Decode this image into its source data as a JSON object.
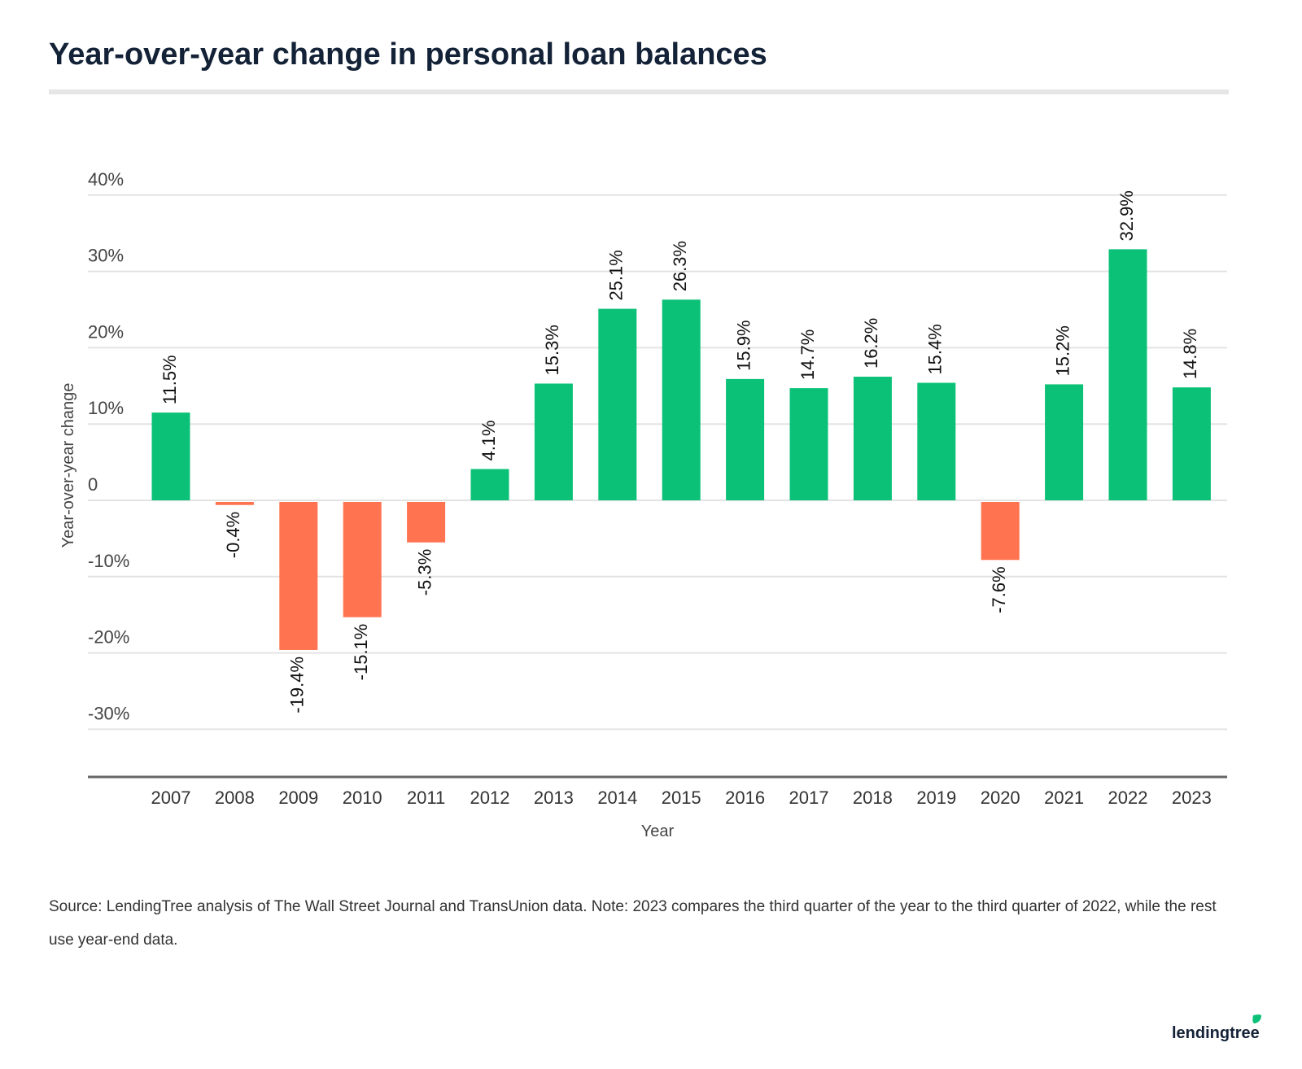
{
  "title": "Year-over-year change in personal loan balances",
  "source": "Source: LendingTree analysis of The Wall Street Journal and TransUnion data. Note: 2023 compares the third quarter of the year to the third quarter of 2022, while the rest use year-end data.",
  "logo": "lendingtree",
  "chart_data": {
    "type": "bar",
    "title": "Year-over-year change in personal loan balances",
    "xlabel": "Year",
    "ylabel": "Year-over-year change",
    "categories": [
      "2007",
      "2008",
      "2009",
      "2010",
      "2011",
      "2012",
      "2013",
      "2014",
      "2015",
      "2016",
      "2017",
      "2018",
      "2019",
      "2020",
      "2021",
      "2022",
      "2023"
    ],
    "values": [
      11.5,
      -0.4,
      -19.4,
      -15.1,
      -5.3,
      4.1,
      15.3,
      25.1,
      26.3,
      15.9,
      14.7,
      16.2,
      15.4,
      -7.6,
      15.2,
      32.9,
      14.8
    ],
    "data_labels": [
      "11.5%",
      "-0.4%",
      "-19.4%",
      "-15.1%",
      "-5.3%",
      "4.1%",
      "15.3%",
      "25.1%",
      "26.3%",
      "15.9%",
      "14.7%",
      "16.2%",
      "15.4%",
      "-7.6%",
      "15.2%",
      "32.9%",
      "14.8%"
    ],
    "yticks": [
      40,
      30,
      20,
      10,
      0,
      -10,
      -20,
      -30
    ],
    "ytick_labels": [
      "40%",
      "30%",
      "20%",
      "10%",
      "0",
      "-10%",
      "-20%",
      "-30%"
    ],
    "ylim": [
      -36,
      40
    ],
    "grid": true,
    "colors": {
      "positive": "#0bc177",
      "negative": "#ff7350",
      "grid": "#e3e3e3",
      "axis": "#666666"
    }
  }
}
